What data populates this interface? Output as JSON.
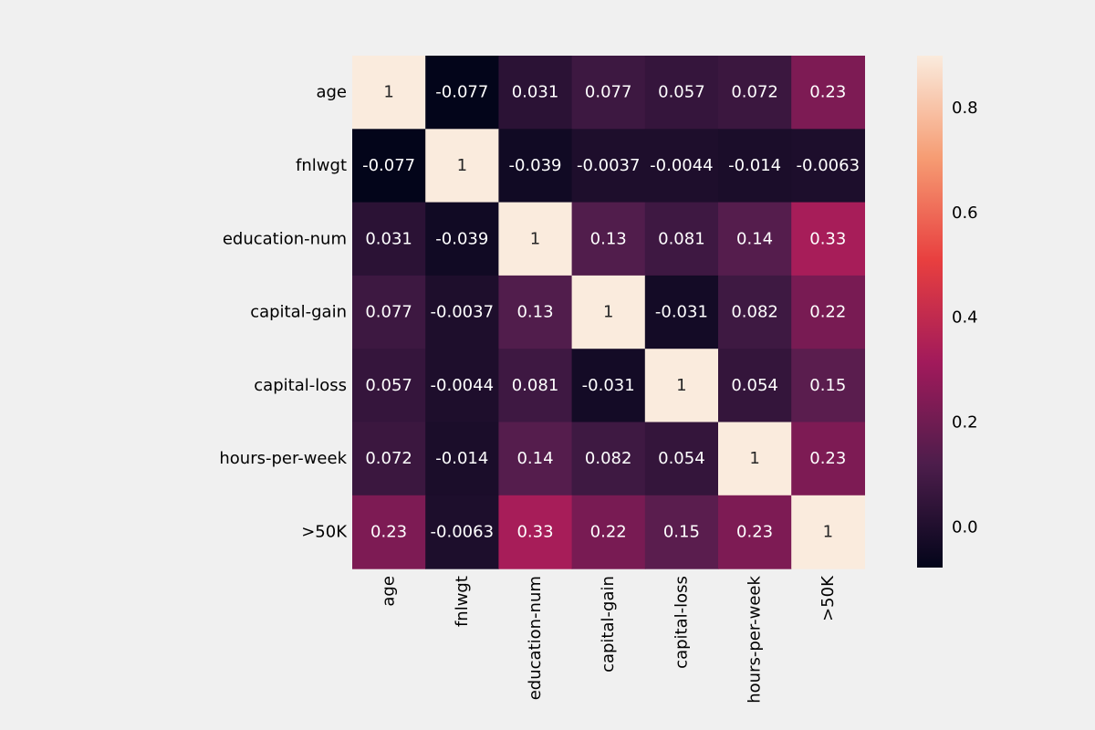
{
  "chart_data": {
    "type": "heatmap",
    "title": "",
    "xlabel": "",
    "ylabel": "",
    "labels": [
      "age",
      "fnlwgt",
      "education-num",
      "capital-gain",
      "capital-loss",
      "hours-per-week",
      ">50K"
    ],
    "values": [
      [
        1,
        -0.077,
        0.031,
        0.077,
        0.057,
        0.072,
        0.23
      ],
      [
        -0.077,
        1,
        -0.039,
        -0.0037,
        -0.0044,
        -0.014,
        -0.0063
      ],
      [
        0.031,
        -0.039,
        1,
        0.13,
        0.081,
        0.14,
        0.33
      ],
      [
        0.077,
        -0.0037,
        0.13,
        1,
        -0.031,
        0.082,
        0.22
      ],
      [
        0.057,
        -0.0044,
        0.081,
        -0.031,
        1,
        0.054,
        0.15
      ],
      [
        0.072,
        -0.014,
        0.14,
        0.082,
        0.054,
        1,
        0.23
      ],
      [
        0.23,
        -0.0063,
        0.33,
        0.22,
        0.15,
        0.23,
        1
      ]
    ],
    "value_labels": [
      [
        "1",
        "-0.077",
        "0.031",
        "0.077",
        "0.057",
        "0.072",
        "0.23"
      ],
      [
        "-0.077",
        "1",
        "-0.039",
        "-0.0037",
        "-0.0044",
        "-0.014",
        "-0.0063"
      ],
      [
        "0.031",
        "-0.039",
        "1",
        "0.13",
        "0.081",
        "0.14",
        "0.33"
      ],
      [
        "0.077",
        "-0.0037",
        "0.13",
        "1",
        "-0.031",
        "0.082",
        "0.22"
      ],
      [
        "0.057",
        "-0.0044",
        "0.081",
        "-0.031",
        "1",
        "0.054",
        "0.15"
      ],
      [
        "0.072",
        "-0.014",
        "0.14",
        "0.082",
        "0.054",
        "1",
        "0.23"
      ],
      [
        "0.23",
        "-0.0063",
        "0.33",
        "0.22",
        "0.15",
        "0.23",
        "1"
      ]
    ],
    "colorbar": {
      "vmin": -0.077,
      "vmax": 0.9,
      "ticks": [
        0.0,
        0.2,
        0.4,
        0.6,
        0.8
      ],
      "tick_labels": [
        "0.0",
        "0.2",
        "0.4",
        "0.6",
        "0.8"
      ]
    },
    "colormap": "rocket",
    "colormap_stops": [
      "#03051a",
      "#4c1d4b",
      "#a11a5b",
      "#e83f3f",
      "#f69c73",
      "#faebdd"
    ],
    "background_color": "#f0f0f0",
    "legend": "right"
  }
}
